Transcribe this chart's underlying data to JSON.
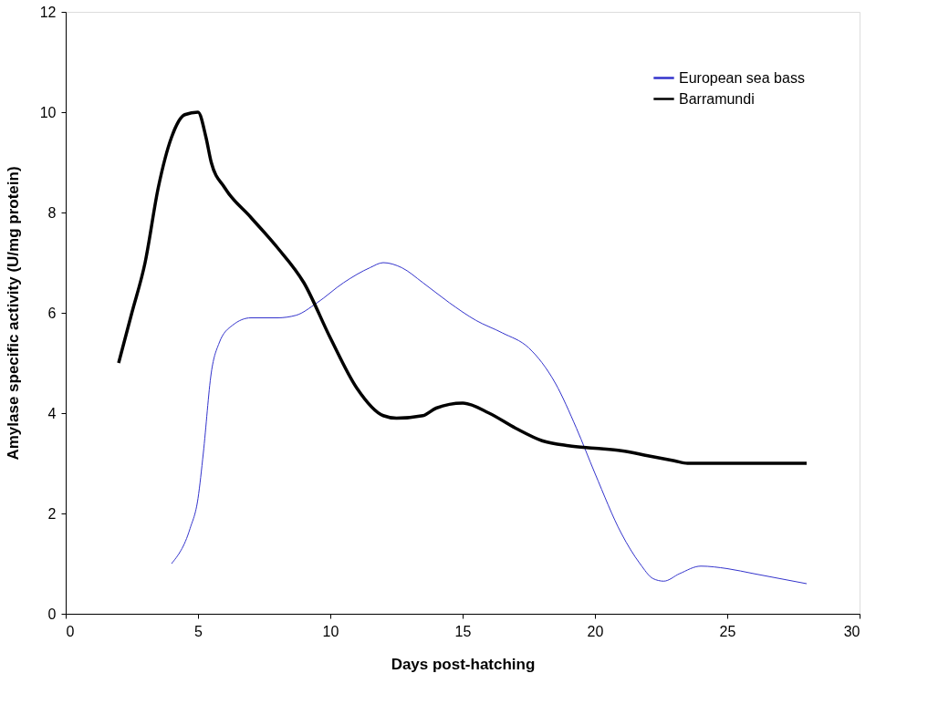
{
  "chart_data": {
    "type": "line",
    "xlabel": "Days post-hatching",
    "ylabel": "Amylase specific activity (U/mg protein)",
    "xlim": [
      0,
      30
    ],
    "xticks": [
      0,
      5,
      10,
      15,
      20,
      25,
      30
    ],
    "ylim": [
      0,
      12
    ],
    "yticks": [
      0,
      2,
      4,
      6,
      8,
      10,
      12
    ],
    "grid": false,
    "legend": "top right",
    "marker": "none",
    "line_style": "solid",
    "series": [
      {
        "name": "European sea bass",
        "color": "#3333cc",
        "x": [
          4,
          4.7,
          5,
          5.2,
          5.5,
          5.8,
          6.3,
          7,
          8,
          8.7,
          9.5,
          10.5,
          11.5,
          12,
          12.7,
          13.5,
          14.5,
          15.5,
          16.5,
          17.5,
          18.5,
          19.3,
          20,
          21,
          21.7,
          22.2,
          22.6,
          23.2,
          24,
          25,
          26,
          28
        ],
        "values": [
          1,
          1.7,
          2.3,
          3.2,
          4.8,
          5.4,
          5.75,
          5.9,
          5.9,
          5.95,
          6.2,
          6.6,
          6.9,
          7,
          6.9,
          6.6,
          6.2,
          5.85,
          5.6,
          5.3,
          4.6,
          3.7,
          2.8,
          1.6,
          1,
          0.7,
          0.65,
          0.8,
          0.95,
          0.9,
          0.8,
          0.6
        ]
      },
      {
        "name": "Barramundi",
        "color": "#000000",
        "x": [
          2,
          2.5,
          3,
          3.5,
          4,
          4.5,
          5,
          5.3,
          5.5,
          6,
          7,
          8,
          9,
          10,
          11,
          12,
          12.5,
          13.5,
          14,
          15,
          16,
          17,
          18,
          19,
          20,
          21,
          22,
          23,
          23.5,
          25,
          28
        ],
        "values": [
          5,
          6,
          7,
          8.5,
          9.5,
          9.95,
          10,
          9.5,
          9,
          8.5,
          7.9,
          7.3,
          6.6,
          5.5,
          4.5,
          3.95,
          3.9,
          3.95,
          4.1,
          4.2,
          4,
          3.7,
          3.45,
          3.35,
          3.3,
          3.25,
          3.15,
          3.05,
          3,
          3,
          3
        ]
      }
    ]
  }
}
